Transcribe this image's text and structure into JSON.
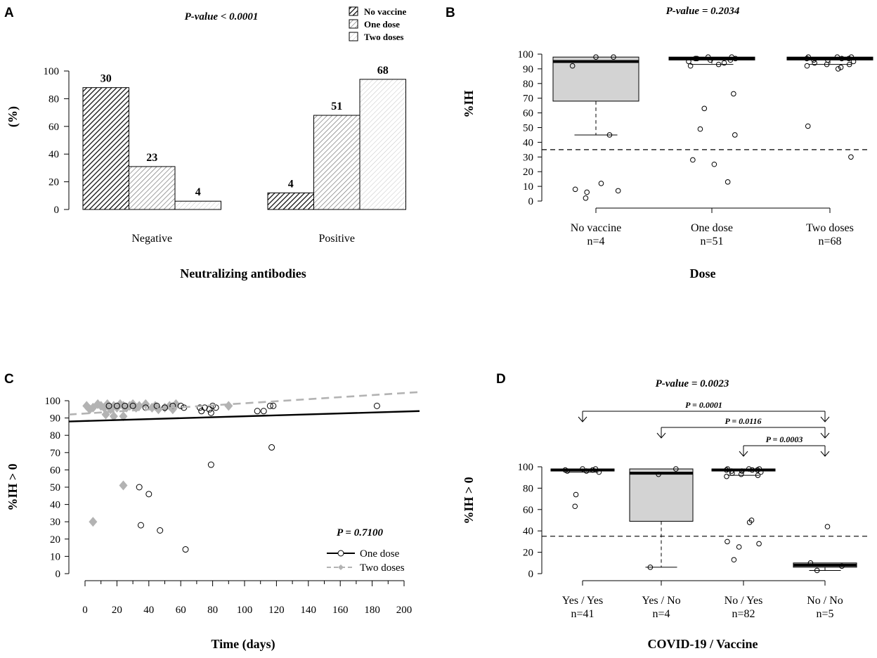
{
  "chart_data": [
    {
      "panel": "A",
      "type": "bar",
      "pvalue_label": "P-value < 0.0001",
      "xlabel": "Neutralizing antibodies",
      "ylabel": "(%)",
      "ylim": [
        0,
        100
      ],
      "yticks": [
        0,
        20,
        40,
        60,
        80,
        100
      ],
      "categories": [
        "Negative",
        "Positive"
      ],
      "series": [
        {
          "name": "No vaccine",
          "values": [
            88,
            12
          ],
          "counts": [
            "30",
            "4"
          ],
          "fill": "#444444"
        },
        {
          "name": "One dose",
          "values": [
            31,
            68
          ],
          "counts": [
            "23",
            "51"
          ],
          "fill": "#9a9a9a"
        },
        {
          "name": "Two doses",
          "values": [
            6,
            94
          ],
          "counts": [
            "4",
            "68"
          ],
          "fill": "#d2d2d2"
        }
      ]
    },
    {
      "panel": "B",
      "type": "box",
      "pvalue_label": "P-value = 0.2034",
      "xlabel": "Dose",
      "ylabel": "%IH",
      "ylim": [
        0,
        100
      ],
      "yticks": [
        0,
        10,
        20,
        30,
        40,
        50,
        60,
        70,
        80,
        90,
        100
      ],
      "threshold": 35,
      "groups": [
        {
          "label": "No vaccine",
          "n": "n=4",
          "q1": 68,
          "median": 95,
          "q3": 98,
          "whisker_low": 45,
          "whisker_high": 98,
          "points": [
            98,
            98,
            92,
            45,
            12,
            8,
            7,
            6,
            2
          ]
        },
        {
          "label": "One dose",
          "n": "n=51",
          "q1": 96,
          "median": 97,
          "q3": 98,
          "whisker_low": 93,
          "whisker_high": 98,
          "points": [
            98,
            98,
            97,
            97,
            97,
            96,
            96,
            95,
            94,
            93,
            92,
            73,
            63,
            49,
            45,
            28,
            25,
            13
          ]
        },
        {
          "label": "Two doses",
          "n": "n=68",
          "q1": 96,
          "median": 97,
          "q3": 98,
          "whisker_low": 93,
          "whisker_high": 98,
          "points": [
            98,
            98,
            98,
            97,
            97,
            97,
            96,
            96,
            95,
            94,
            93,
            93,
            92,
            91,
            90,
            51,
            30
          ]
        }
      ]
    },
    {
      "panel": "C",
      "type": "scatter",
      "pvalue_label": "P = 0.7100",
      "xlabel": "Time (days)",
      "ylabel": "%IH > 0",
      "xlim": [
        -5,
        210
      ],
      "ylim": [
        0,
        100
      ],
      "xticks": [
        0,
        20,
        40,
        60,
        80,
        100,
        120,
        140,
        160,
        180,
        200
      ],
      "yticks": [
        0,
        10,
        20,
        30,
        40,
        50,
        60,
        70,
        80,
        90,
        100
      ],
      "series": [
        {
          "name": "One dose",
          "marker": "circle",
          "color": "#000000",
          "trend": [
            [
              -5,
              88
            ],
            [
              210,
              94
            ]
          ],
          "points": [
            [
              34,
              50
            ],
            [
              40,
              46
            ],
            [
              35,
              28
            ],
            [
              47,
              25
            ],
            [
              63,
              14
            ],
            [
              79,
              63
            ],
            [
              117,
              73
            ],
            [
              183,
              97
            ],
            [
              60,
              97
            ],
            [
              62,
              96
            ],
            [
              72,
              96
            ],
            [
              75,
              96
            ],
            [
              78,
              95
            ],
            [
              80,
              97
            ],
            [
              82,
              96
            ],
            [
              73,
              94
            ],
            [
              79,
              93
            ],
            [
              108,
              94
            ],
            [
              112,
              94
            ],
            [
              116,
              97
            ],
            [
              118,
              97
            ],
            [
              45,
              97
            ],
            [
              50,
              96
            ],
            [
              55,
              97
            ],
            [
              38,
              96
            ],
            [
              30,
              97
            ],
            [
              25,
              97
            ],
            [
              20,
              97
            ],
            [
              15,
              97
            ]
          ]
        },
        {
          "name": "Two doses",
          "marker": "diamond",
          "color": "#b3b3b3",
          "trend": [
            [
              -5,
              92
            ],
            [
              210,
              107
            ]
          ],
          "points": [
            [
              1,
              97
            ],
            [
              3,
              95
            ],
            [
              5,
              96
            ],
            [
              8,
              98
            ],
            [
              10,
              97
            ],
            [
              12,
              96
            ],
            [
              14,
              98
            ],
            [
              16,
              95
            ],
            [
              18,
              97
            ],
            [
              20,
              96
            ],
            [
              22,
              98
            ],
            [
              24,
              97
            ],
            [
              26,
              96
            ],
            [
              28,
              97
            ],
            [
              30,
              98
            ],
            [
              32,
              96
            ],
            [
              34,
              97
            ],
            [
              38,
              98
            ],
            [
              42,
              96
            ],
            [
              44,
              97
            ],
            [
              46,
              95
            ],
            [
              50,
              96
            ],
            [
              53,
              97
            ],
            [
              55,
              95
            ],
            [
              57,
              98
            ],
            [
              90,
              97
            ],
            [
              13,
              92
            ],
            [
              18,
              91
            ],
            [
              24,
              91
            ],
            [
              24,
              51
            ],
            [
              5,
              30
            ]
          ]
        }
      ]
    },
    {
      "panel": "D",
      "type": "box",
      "pvalue_label": "P-value = 0.0023",
      "xlabel": "COVID-19 / Vaccine",
      "ylabel": "%IH > 0",
      "ylim": [
        0,
        100
      ],
      "yticks": [
        0,
        20,
        40,
        60,
        80,
        100
      ],
      "threshold": 35,
      "groups": [
        {
          "label": "Yes / Yes",
          "n": "n=41",
          "q1": 96,
          "median": 97,
          "q3": 98,
          "whisker_low": 95,
          "whisker_high": 98,
          "points": [
            98,
            98,
            97,
            97,
            96,
            96,
            95,
            74,
            63
          ]
        },
        {
          "label": "Yes / No",
          "n": "n=4",
          "q1": 49,
          "median": 94,
          "q3": 98,
          "whisker_low": 6,
          "whisker_high": 98,
          "points": [
            98,
            93,
            6
          ]
        },
        {
          "label": "No / Yes",
          "n": "n=82",
          "q1": 96,
          "median": 97,
          "q3": 98,
          "whisker_low": 92,
          "whisker_high": 98,
          "points": [
            98,
            98,
            98,
            97,
            97,
            97,
            96,
            96,
            95,
            94,
            93,
            92,
            91,
            50,
            48,
            30,
            28,
            25,
            13
          ]
        },
        {
          "label": "No / No",
          "n": "n=5",
          "q1": 6,
          "median": 8,
          "q3": 10,
          "whisker_low": 3,
          "whisker_high": 10,
          "points": [
            44,
            10,
            7,
            3
          ]
        }
      ],
      "comparisons": [
        {
          "label": "P = 0.0001",
          "from": 0,
          "to": 3
        },
        {
          "label": "P = 0.0116",
          "from": 1,
          "to": 3
        },
        {
          "label": "P = 0.0003",
          "from": 2,
          "to": 3
        }
      ]
    }
  ]
}
